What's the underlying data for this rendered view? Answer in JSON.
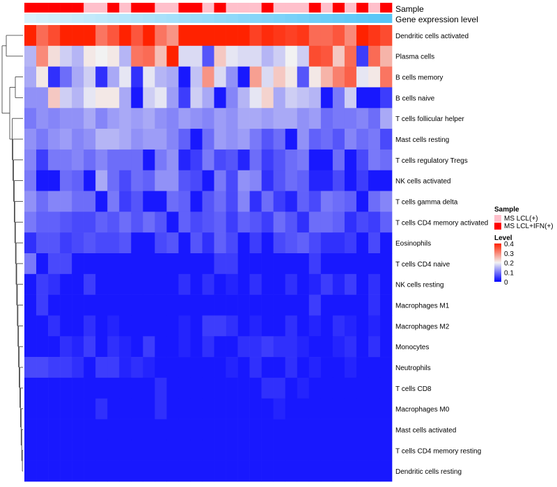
{
  "chart_data": {
    "type": "heatmap",
    "title": "",
    "annotation_tracks": [
      {
        "label": "Sample",
        "colors": "per-column sample group"
      },
      {
        "label": "Gene expression level",
        "colors": "per-column gradient, darker toward the right"
      }
    ],
    "columns": 31,
    "column_groups": [
      "ifn",
      "ifn",
      "ifn",
      "ifn",
      "ifn",
      "lcl",
      "lcl",
      "ifn",
      "lcl",
      "ifn",
      "ifn",
      "lcl",
      "lcl",
      "ifn",
      "ifn",
      "lcl",
      "ifn",
      "lcl",
      "lcl",
      "lcl",
      "ifn",
      "lcl",
      "lcl",
      "lcl",
      "ifn",
      "lcl",
      "ifn",
      "lcl",
      "ifn",
      "lcl",
      "ifn"
    ],
    "gene_expression_track": [
      0.05,
      0.08,
      0.11,
      0.14,
      0.17,
      0.2,
      0.23,
      0.26,
      0.29,
      0.32,
      0.35,
      0.38,
      0.41,
      0.44,
      0.47,
      0.5,
      0.53,
      0.56,
      0.59,
      0.62,
      0.65,
      0.68,
      0.71,
      0.74,
      0.77,
      0.8,
      0.83,
      0.86,
      0.89,
      0.92,
      0.95
    ],
    "rows": [
      {
        "label": "Dendritic cells activated",
        "values": [
          0.4,
          0.33,
          0.36,
          0.4,
          0.4,
          0.4,
          0.32,
          0.35,
          0.4,
          0.35,
          0.4,
          0.32,
          0.29,
          0.4,
          0.4,
          0.4,
          0.4,
          0.4,
          0.4,
          0.37,
          0.39,
          0.38,
          0.37,
          0.38,
          0.33,
          0.33,
          0.35,
          0.3,
          0.4,
          0.38,
          0.36
        ]
      },
      {
        "label": "Plasma cells",
        "values": [
          0.15,
          0.3,
          0.22,
          0.17,
          0.15,
          0.21,
          0.2,
          0.21,
          0.15,
          0.32,
          0.33,
          0.25,
          0.4,
          0.18,
          0.18,
          0.07,
          0.24,
          0.19,
          0.18,
          0.18,
          0.15,
          0.17,
          0.2,
          0.17,
          0.36,
          0.35,
          0.24,
          0.33,
          0.05,
          0.33,
          0.26
        ]
      },
      {
        "label": "B cells memory",
        "values": [
          0.14,
          0.21,
          0.04,
          0.09,
          0.14,
          0.17,
          0.04,
          0.14,
          0.19,
          0.04,
          0.19,
          0.15,
          0.14,
          0.02,
          0.16,
          0.29,
          0.18,
          0.12,
          0.02,
          0.28,
          0.18,
          0.24,
          0.21,
          0.07,
          0.21,
          0.26,
          0.31,
          0.34,
          0.19,
          0.21,
          0.32
        ]
      },
      {
        "label": "B cells naive",
        "values": [
          0.12,
          0.12,
          0.24,
          0.17,
          0.15,
          0.19,
          0.21,
          0.21,
          0.14,
          0.02,
          0.17,
          0.19,
          0.13,
          0.05,
          0.17,
          0.14,
          0.02,
          0.11,
          0.15,
          0.19,
          0.23,
          0.14,
          0.17,
          0.16,
          0.15,
          0.02,
          0.1,
          0.17,
          0.02,
          0.02,
          0.05
        ]
      },
      {
        "label": "T cells follicular helper",
        "values": [
          0.1,
          0.12,
          0.11,
          0.12,
          0.12,
          0.14,
          0.11,
          0.13,
          0.14,
          0.13,
          0.14,
          0.12,
          0.11,
          0.13,
          0.12,
          0.11,
          0.13,
          0.12,
          0.14,
          0.14,
          0.13,
          0.14,
          0.14,
          0.12,
          0.13,
          0.09,
          0.1,
          0.1,
          0.11,
          0.09,
          0.14
        ]
      },
      {
        "label": "Mast cells resting",
        "values": [
          0.12,
          0.1,
          0.12,
          0.13,
          0.11,
          0.12,
          0.15,
          0.15,
          0.14,
          0.12,
          0.13,
          0.13,
          0.11,
          0.08,
          0.02,
          0.09,
          0.13,
          0.12,
          0.13,
          0.1,
          0.07,
          0.09,
          0.02,
          0.12,
          0.08,
          0.09,
          0.07,
          0.11,
          0.09,
          0.1,
          0.06
        ]
      },
      {
        "label": "T cells regulatory  Tregs",
        "values": [
          0.11,
          0.05,
          0.1,
          0.1,
          0.11,
          0.09,
          0.11,
          0.09,
          0.09,
          0.09,
          0.02,
          0.1,
          0.12,
          0.03,
          0.05,
          0.1,
          0.06,
          0.07,
          0.03,
          0.09,
          0.05,
          0.07,
          0.09,
          0.1,
          0.02,
          0.02,
          0.09,
          0.02,
          0.06,
          0.1,
          0.09
        ]
      },
      {
        "label": "NK cells activated",
        "values": [
          0.1,
          0.02,
          0.02,
          0.09,
          0.08,
          0.02,
          0.14,
          0.09,
          0.06,
          0.09,
          0.08,
          0.12,
          0.12,
          0.07,
          0.06,
          0.02,
          0.1,
          0.06,
          0.12,
          0.11,
          0.04,
          0.07,
          0.09,
          0.08,
          0.03,
          0.03,
          0.06,
          0.02,
          0.05,
          0.02,
          0.02
        ]
      },
      {
        "label": "T cells gamma delta",
        "values": [
          0.12,
          0.09,
          0.11,
          0.11,
          0.09,
          0.09,
          0.02,
          0.1,
          0.05,
          0.07,
          0.02,
          0.02,
          0.09,
          0.08,
          0.02,
          0.07,
          0.09,
          0.06,
          0.11,
          0.04,
          0.09,
          0.05,
          0.03,
          0.08,
          0.06,
          0.1,
          0.09,
          0.08,
          0.02,
          0.09,
          0.11
        ]
      },
      {
        "label": "T cells CD4 memory activated",
        "values": [
          0.1,
          0.08,
          0.08,
          0.07,
          0.06,
          0.06,
          0.08,
          0.07,
          0.09,
          0.07,
          0.09,
          0.07,
          0.02,
          0.08,
          0.06,
          0.07,
          0.08,
          0.05,
          0.08,
          0.07,
          0.05,
          0.09,
          0.07,
          0.04,
          0.09,
          0.09,
          0.08,
          0.04,
          0.06,
          0.05,
          0.08
        ]
      },
      {
        "label": "Eosinophils",
        "values": [
          0.04,
          0.07,
          0.07,
          0.05,
          0.06,
          0.07,
          0.06,
          0.06,
          0.07,
          0.02,
          0.02,
          0.06,
          0.07,
          0.02,
          0.07,
          0.04,
          0.08,
          0.06,
          0.02,
          0.05,
          0.02,
          0.06,
          0.07,
          0.08,
          0.06,
          0.04,
          0.04,
          0.05,
          0.02,
          0.06,
          0.02
        ]
      },
      {
        "label": "T cells CD4 naive",
        "values": [
          0.1,
          0.02,
          0.06,
          0.06,
          0.02,
          0.02,
          0.02,
          0.02,
          0.02,
          0.02,
          0.02,
          0.02,
          0.02,
          0.02,
          0.02,
          0.02,
          0.05,
          0.05,
          0.02,
          0.02,
          0.02,
          0.02,
          0.02,
          0.02,
          0.05,
          0.02,
          0.02,
          0.02,
          0.02,
          0.02,
          0.02
        ]
      },
      {
        "label": "NK cells resting",
        "values": [
          0.02,
          0.05,
          0.04,
          0.02,
          0.02,
          0.05,
          0.02,
          0.02,
          0.02,
          0.02,
          0.02,
          0.02,
          0.02,
          0.04,
          0.02,
          0.04,
          0.02,
          0.03,
          0.02,
          0.04,
          0.02,
          0.02,
          0.04,
          0.02,
          0.03,
          0.05,
          0.03,
          0.05,
          0.02,
          0.04,
          0.02
        ]
      },
      {
        "label": "Macrophages M1",
        "values": [
          0.02,
          0.05,
          0.02,
          0.02,
          0.02,
          0.02,
          0.02,
          0.02,
          0.02,
          0.02,
          0.02,
          0.02,
          0.02,
          0.02,
          0.02,
          0.02,
          0.02,
          0.02,
          0.02,
          0.02,
          0.02,
          0.02,
          0.02,
          0.02,
          0.05,
          0.02,
          0.02,
          0.02,
          0.02,
          0.04,
          0.02
        ]
      },
      {
        "label": "Macrophages M2",
        "values": [
          0.02,
          0.02,
          0.04,
          0.02,
          0.02,
          0.04,
          0.02,
          0.03,
          0.02,
          0.02,
          0.02,
          0.02,
          0.02,
          0.03,
          0.02,
          0.05,
          0.05,
          0.04,
          0.02,
          0.03,
          0.02,
          0.02,
          0.04,
          0.02,
          0.03,
          0.02,
          0.04,
          0.03,
          0.02,
          0.03,
          0.02
        ]
      },
      {
        "label": "Monocytes",
        "values": [
          0.02,
          0.02,
          0.02,
          0.04,
          0.03,
          0.05,
          0.02,
          0.04,
          0.03,
          0.02,
          0.05,
          0.02,
          0.02,
          0.03,
          0.02,
          0.04,
          0.02,
          0.02,
          0.04,
          0.04,
          0.05,
          0.04,
          0.04,
          0.03,
          0.02,
          0.02,
          0.03,
          0.04,
          0.02,
          0.04,
          0.02
        ]
      },
      {
        "label": "Neutrophils",
        "values": [
          0.06,
          0.06,
          0.05,
          0.05,
          0.04,
          0.02,
          0.05,
          0.05,
          0.03,
          0.04,
          0.03,
          0.02,
          0.02,
          0.02,
          0.02,
          0.02,
          0.02,
          0.03,
          0.02,
          0.04,
          0.02,
          0.02,
          0.04,
          0.02,
          0.03,
          0.02,
          0.02,
          0.03,
          0.02,
          0.02,
          0.02
        ]
      },
      {
        "label": "T cells CD8",
        "values": [
          0.02,
          0.02,
          0.02,
          0.02,
          0.02,
          0.02,
          0.02,
          0.02,
          0.02,
          0.02,
          0.02,
          0.04,
          0.02,
          0.02,
          0.02,
          0.02,
          0.02,
          0.02,
          0.02,
          0.02,
          0.04,
          0.04,
          0.02,
          0.03,
          0.02,
          0.02,
          0.02,
          0.02,
          0.02,
          0.02,
          0.02
        ]
      },
      {
        "label": "Macrophages M0",
        "values": [
          0.02,
          0.02,
          0.02,
          0.02,
          0.02,
          0.02,
          0.04,
          0.02,
          0.02,
          0.02,
          0.02,
          0.04,
          0.02,
          0.02,
          0.02,
          0.02,
          0.02,
          0.02,
          0.02,
          0.02,
          0.02,
          0.03,
          0.02,
          0.02,
          0.02,
          0.02,
          0.02,
          0.02,
          0.02,
          0.02,
          0.02
        ]
      },
      {
        "label": "Mast cells activated",
        "values": [
          0.02,
          0.02,
          0.02,
          0.02,
          0.02,
          0.02,
          0.02,
          0.02,
          0.02,
          0.02,
          0.02,
          0.02,
          0.02,
          0.02,
          0.02,
          0.02,
          0.02,
          0.02,
          0.02,
          0.02,
          0.02,
          0.02,
          0.02,
          0.02,
          0.02,
          0.02,
          0.02,
          0.02,
          0.02,
          0.02,
          0.02
        ]
      },
      {
        "label": "T cells CD4 memory resting",
        "values": [
          0.02,
          0.02,
          0.02,
          0.02,
          0.02,
          0.02,
          0.02,
          0.02,
          0.02,
          0.02,
          0.02,
          0.02,
          0.02,
          0.02,
          0.02,
          0.02,
          0.02,
          0.02,
          0.02,
          0.02,
          0.02,
          0.02,
          0.02,
          0.02,
          0.02,
          0.02,
          0.02,
          0.02,
          0.02,
          0.02,
          0.02
        ]
      },
      {
        "label": "Dendritic cells resting",
        "values": [
          0.02,
          0.02,
          0.02,
          0.02,
          0.02,
          0.02,
          0.02,
          0.02,
          0.02,
          0.02,
          0.02,
          0.02,
          0.02,
          0.02,
          0.02,
          0.02,
          0.02,
          0.02,
          0.02,
          0.02,
          0.02,
          0.02,
          0.02,
          0.02,
          0.02,
          0.02,
          0.02,
          0.02,
          0.02,
          0.02,
          0.02
        ]
      }
    ],
    "legend": {
      "sample": {
        "title": "Sample",
        "entries": [
          {
            "key": "lcl",
            "label": "MS LCL(+)",
            "color": "#FFC0CB"
          },
          {
            "key": "ifn",
            "label": "MS LCL+IFN(+)",
            "color": "#FF0000"
          }
        ]
      },
      "level": {
        "title": "Level",
        "ticks": [
          0.4,
          0.3,
          0.2,
          0.1,
          0
        ],
        "tick_labels": [
          "0.4",
          "0.3",
          "0.2",
          "0.1",
          "0"
        ],
        "range": [
          0,
          0.4
        ]
      }
    },
    "color_scale": {
      "low": "#0000FF",
      "mid": "#F2F2F2",
      "high": "#FF2200",
      "min": 0,
      "mid_value": 0.2,
      "max": 0.4
    },
    "expression_track_colors": {
      "light": "#E0F4FC",
      "dark": "#4FC3F7"
    }
  }
}
